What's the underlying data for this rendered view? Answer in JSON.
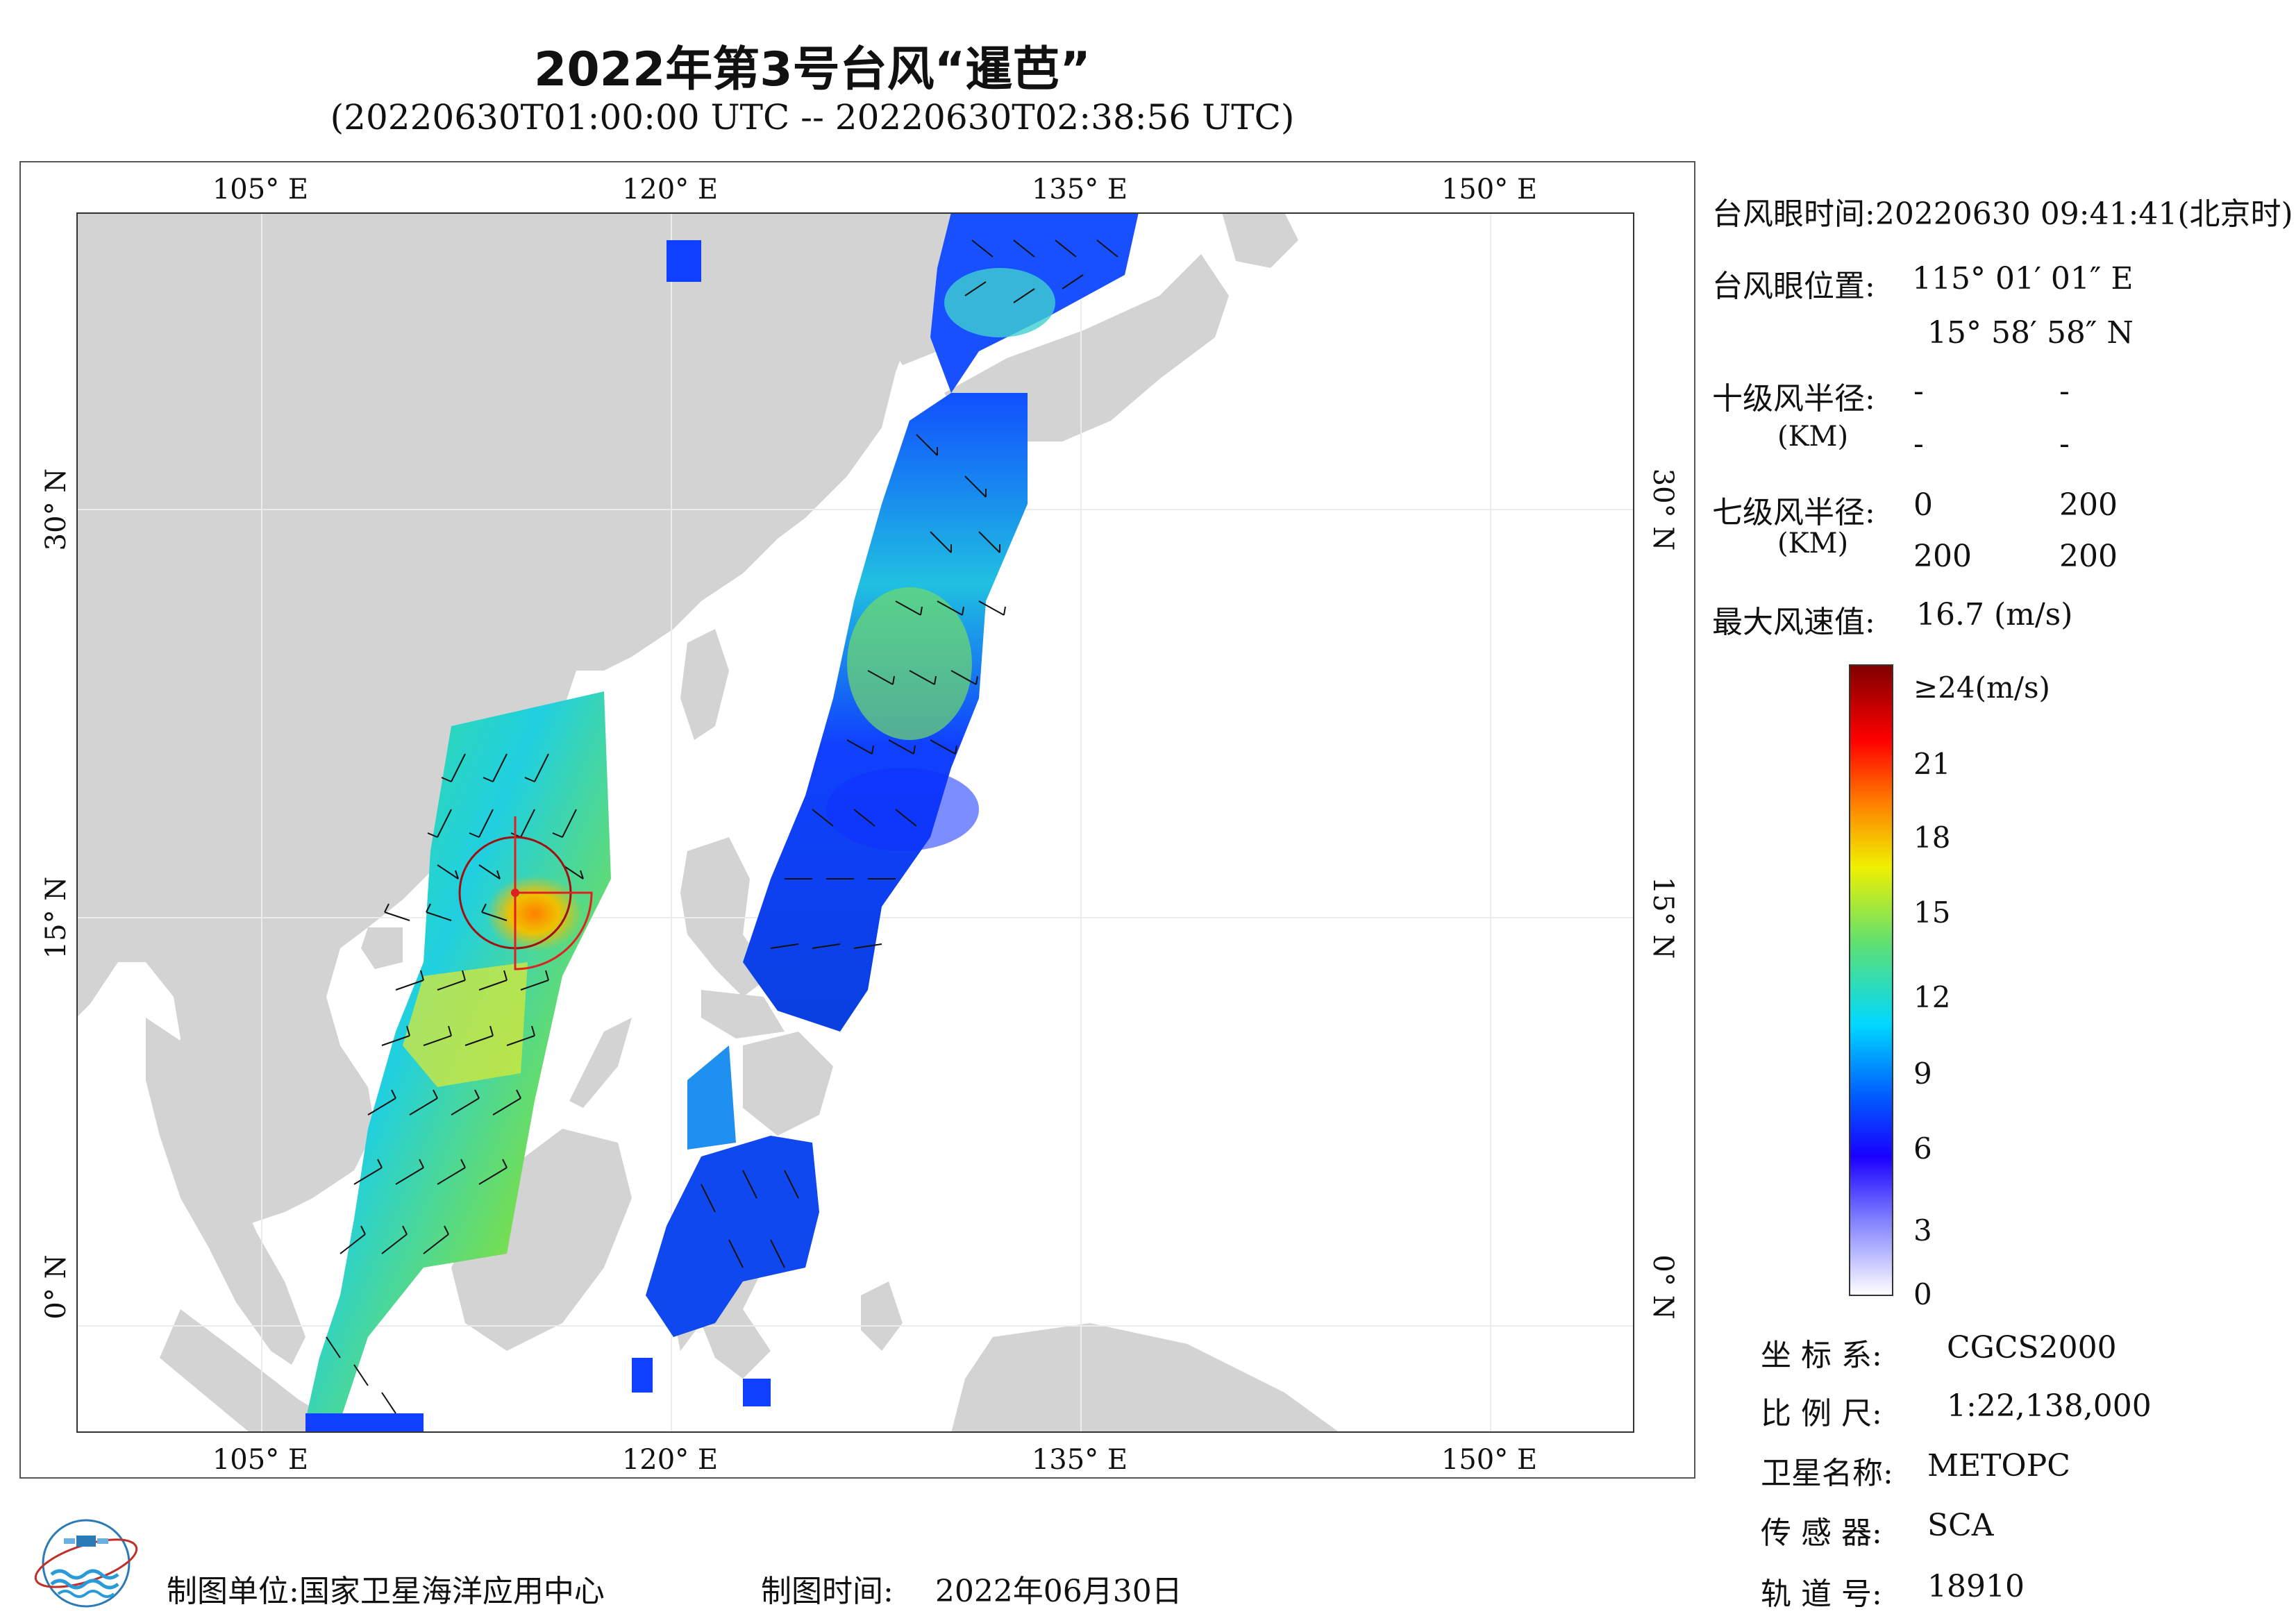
{
  "header": {
    "title": "2022年第3号台风“暹芭”",
    "subtitle": "(20220630T01:00:00 UTC -- 20220630T02:38:56 UTC)"
  },
  "map": {
    "lon_labels": [
      "105° E",
      "120° E",
      "135° E",
      "150° E"
    ],
    "lat_labels": [
      "30° N",
      "15° N",
      "0° N"
    ],
    "land_color": "#d3d3d3",
    "sea_color": "#ffffff"
  },
  "typhoon_info": {
    "eye_time_label": "台风眼时间:",
    "eye_time_value": "20220630 09:41:41(北京时)",
    "eye_pos_label": "台风眼位置:",
    "eye_lon": "115° 01′ 01″ E",
    "eye_lat": "15° 58′ 58″ N",
    "r10_label": "十级风半径:",
    "r10_unit": "(KM)",
    "r10_values": [
      "-",
      "-",
      "-",
      "-"
    ],
    "r7_label": "七级风半径:",
    "r7_unit": "(KM)",
    "r7_values": [
      "0",
      "200",
      "200",
      "200"
    ],
    "max_wind_label": "最大风速值:",
    "max_wind_value": "16.7  (m/s)"
  },
  "colorbar": {
    "labels": [
      "≥24(m/s)",
      "21",
      "18",
      "15",
      "12",
      "9",
      "6",
      "3",
      "0"
    ],
    "stops": [
      "#ffffff",
      "#1a00ff",
      "#0060ff",
      "#00d8ff",
      "#60e070",
      "#f0f000",
      "#ff8000",
      "#ff0000",
      "#800000"
    ]
  },
  "meta_info": {
    "coord_label": "坐 标 系:",
    "coord_value": "CGCS2000",
    "scale_label": "比 例 尺:",
    "scale_value": "1:22,138,000",
    "sat_label": "卫星名称:",
    "sat_value": "METOPC",
    "sensor_label": "传 感 器:",
    "sensor_value": "SCA",
    "orbit_label": "轨 道 号:",
    "orbit_value": "18910"
  },
  "footer": {
    "unit_label": "制图单位:",
    "unit_value": "国家卫星海洋应用中心",
    "time_label": "制图时间:",
    "time_value": "2022年06月30日"
  }
}
